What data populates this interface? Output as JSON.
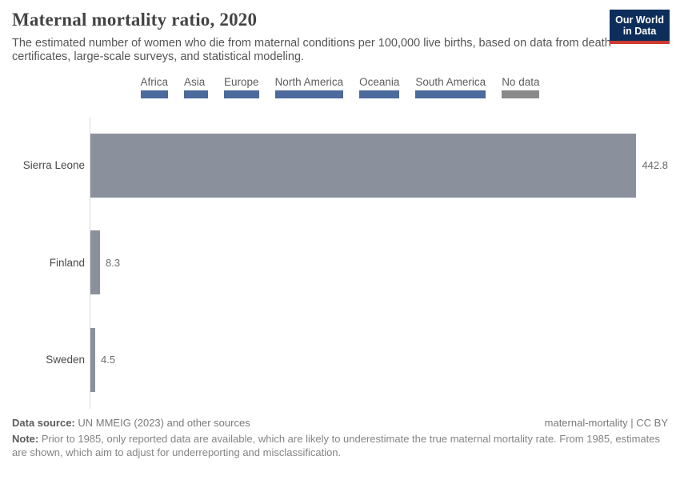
{
  "header": {
    "title": "Maternal mortality ratio, 2020",
    "subtitle": "The estimated number of women who die from maternal conditions per 100,000 live births, based on data from death certificates, large-scale surveys, and statistical modeling.",
    "logo": {
      "line1": "Our World",
      "line2": "in Data",
      "bg_color": "#0d2e5a",
      "stripe_color": "#ce3a32"
    }
  },
  "legend": {
    "items": [
      {
        "label": "Africa",
        "color": "#4c6a9c"
      },
      {
        "label": "Asia",
        "color": "#4c6a9c"
      },
      {
        "label": "Europe",
        "color": "#4c6a9c"
      },
      {
        "label": "North America",
        "color": "#4c6a9c"
      },
      {
        "label": "Oceania",
        "color": "#4c6a9c"
      },
      {
        "label": "South America",
        "color": "#4c6a9c"
      },
      {
        "label": "No data",
        "color": "#8a8a8a"
      }
    ]
  },
  "chart_data": {
    "type": "bar",
    "orientation": "horizontal",
    "title": "Maternal mortality ratio, 2020",
    "categories": [
      "Sierra Leone",
      "Finland",
      "Sweden"
    ],
    "values": [
      442.8,
      8.3,
      4.5
    ],
    "value_labels": [
      "442.8",
      "8.3",
      "4.5"
    ],
    "bar_color": "#8b919c",
    "xlim": [
      0,
      442.8
    ],
    "grid": false,
    "legend_position": "top",
    "xlabel": "",
    "ylabel": ""
  },
  "footer": {
    "source_label": "Data source:",
    "source_text": " UN MMEIG (2023) and other sources",
    "license": "maternal-mortality | CC BY",
    "note_label": "Note:",
    "note_text": " Prior to 1985, only reported data are available, which are likely to underestimate the true maternal mortality rate. From 1985, estimates are shown, which aim to adjust for underreporting and misclassification."
  }
}
